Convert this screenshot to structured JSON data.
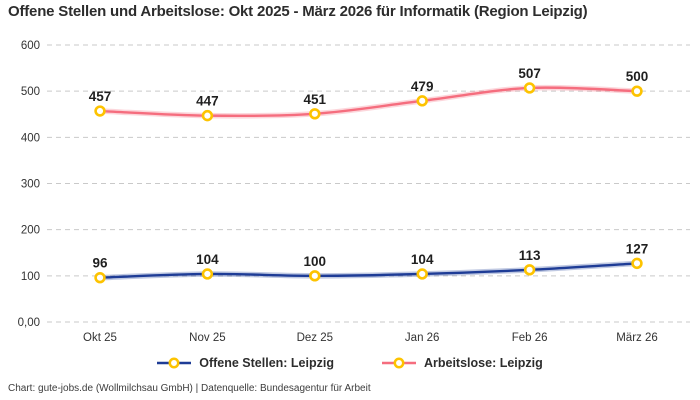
{
  "title": "Offene Stellen und Arbeitslose: Okt 2025 - März 2026 für Informatik (Region Leipzig)",
  "footer": "Chart: gute-jobs.de (Wollmilchsau GmbH) | Datenquelle: Bundesagentur für Arbeit",
  "colors": {
    "grid": "#c9c9c9",
    "axis_text": "#333333",
    "data_label_text": "#1f1f1f",
    "marker_stroke": "#fdc300",
    "marker_fill": "#ffffff",
    "offene_stellen_line": "#1e3c96",
    "arbeitslose_line": "#f56d7e"
  },
  "chart_data": {
    "type": "line",
    "title": "Offene Stellen und Arbeitslose: Okt 2025 - März 2026 für Informatik (Region Leipzig)",
    "categories": [
      "Okt 25",
      "Nov 25",
      "Dez 25",
      "Jan 26",
      "Feb 26",
      "März 26"
    ],
    "series": [
      {
        "name": "Offene Stellen: Leipzig",
        "values": [
          96,
          104,
          100,
          104,
          113,
          127
        ],
        "color": "#1e3c96"
      },
      {
        "name": "Arbeitslose: Leipzig",
        "values": [
          457,
          447,
          451,
          479,
          507,
          500
        ],
        "color": "#f56d7e"
      }
    ],
    "ylim": [
      0,
      600
    ],
    "yticks": [
      {
        "value": 0,
        "label": "0,00"
      },
      {
        "value": 100,
        "label": "100"
      },
      {
        "value": 200,
        "label": "200"
      },
      {
        "value": 300,
        "label": "300"
      },
      {
        "value": 400,
        "label": "400"
      },
      {
        "value": 500,
        "label": "500"
      },
      {
        "value": 600,
        "label": "600"
      }
    ],
    "grid": true,
    "legend_position": "bottom",
    "marker": {
      "shape": "circle",
      "fill": "#ffffff",
      "stroke": "#fdc300"
    }
  }
}
